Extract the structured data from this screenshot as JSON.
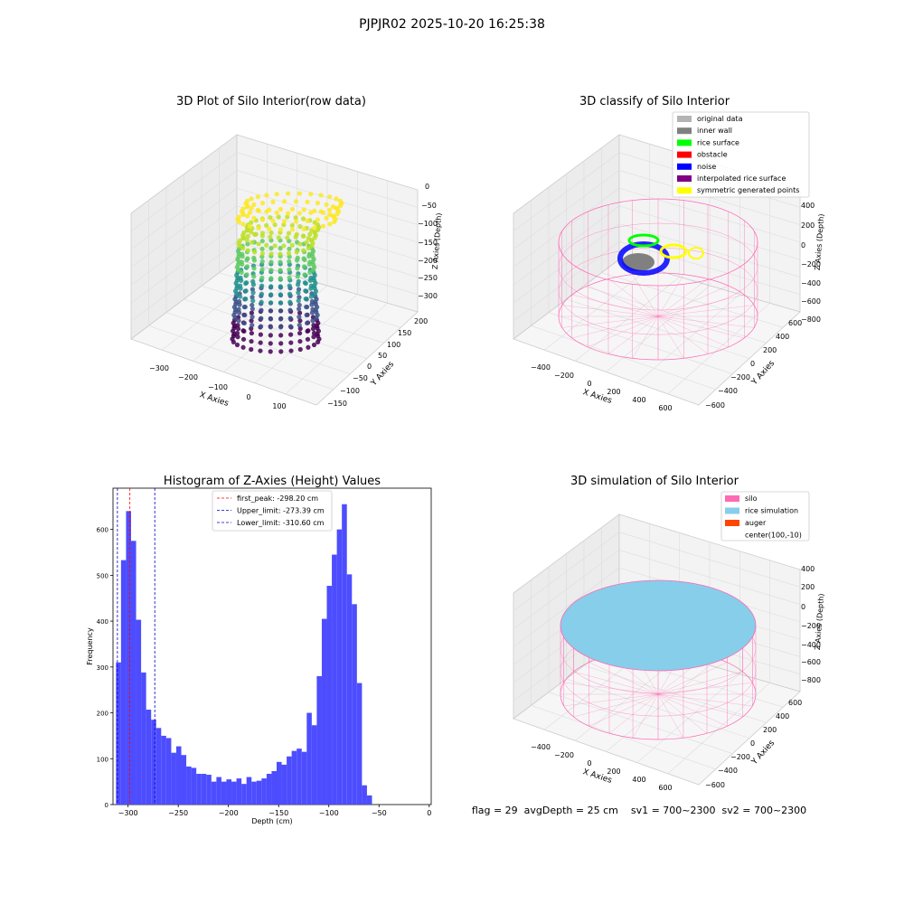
{
  "figure": {
    "suptitle": "PJPJR02 2025-10-20 16:25:38",
    "footer": "flag = 29  avgDepth = 25 cm    sv1 = 700~2300  sv2 = 700~2300"
  },
  "colors": {
    "histogram_bar": "#4d4dff",
    "first_peak": "#ff0000",
    "limits": "#0000cc",
    "silo_wire": "#ff69b4",
    "rice_fill": "#87ceeb",
    "auger": "#ff4500",
    "original_data": "#b4b4b4",
    "inner_wall": "#808080",
    "rice_surface": "#00ff00",
    "obstacle": "#ff0000",
    "noise": "#0000ff",
    "interpolated": "#800080",
    "symmetric": "#ffff00"
  },
  "panels": {
    "raw": {
      "title": "3D Plot of Silo Interior(row data)",
      "xlabel": "X Axies",
      "ylabel": "Y Axies",
      "zlabel": "Z Axies (Depth)",
      "xticks": [
        "−300",
        "−200",
        "−100",
        "0",
        "100"
      ],
      "yticks": [
        "200",
        "150",
        "100",
        "50",
        "0",
        "−50",
        "−100",
        "−150"
      ],
      "zticks": [
        "0",
        "−50",
        "−100",
        "−150",
        "−200",
        "−250",
        "−300"
      ]
    },
    "classify": {
      "title": "3D classify of Silo Interior",
      "xlabel": "X Axies",
      "ylabel": "Y Axies",
      "zlabel": "Z Axies (Depth)",
      "xticks": [
        "−400",
        "−200",
        "0",
        "200",
        "400",
        "600"
      ],
      "yticks": [
        "600",
        "400",
        "200",
        "0",
        "−200",
        "−400",
        "−600"
      ],
      "zticks": [
        "400",
        "200",
        "0",
        "−200",
        "−400",
        "−600",
        "−800"
      ],
      "legend": [
        {
          "label": "original data",
          "color": "#b4b4b4"
        },
        {
          "label": "inner wall",
          "color": "#808080"
        },
        {
          "label": "rice surface",
          "color": "#00ff00"
        },
        {
          "label": "obstacle",
          "color": "#ff0000"
        },
        {
          "label": "noise",
          "color": "#0000ff"
        },
        {
          "label": "interpolated rice surface",
          "color": "#800080"
        },
        {
          "label": "symmetric generated points",
          "color": "#ffff00"
        }
      ]
    },
    "simulation": {
      "title": "3D simulation of Silo Interior",
      "xlabel": "X Axies",
      "ylabel": "Y Axies",
      "zlabel": "Z Axies (Depth)",
      "xticks": [
        "−400",
        "−200",
        "0",
        "200",
        "400",
        "600"
      ],
      "yticks": [
        "600",
        "400",
        "200",
        "0",
        "−200",
        "−400",
        "−600"
      ],
      "zticks": [
        "400",
        "200",
        "0",
        "−200",
        "−400",
        "−600",
        "−800"
      ],
      "legend": [
        {
          "label": "silo",
          "color": "#ff69b4"
        },
        {
          "label": "rice simulation",
          "color": "#87ceeb"
        },
        {
          "label": "auger",
          "color": "#ff4500"
        },
        {
          "label": "center(100,-10)",
          "color": ""
        }
      ]
    }
  },
  "chart_data": [
    {
      "type": "bar",
      "title": "Histogram of Z-Axies (Height) Values",
      "xlabel": "Depth (cm)",
      "ylabel": "Frequency",
      "xlim": [
        -315,
        2
      ],
      "ylim": [
        0,
        690
      ],
      "bin_width": 5,
      "bin_start": -312,
      "xticks": [
        -300,
        -250,
        -200,
        -150,
        -100,
        -50,
        0
      ],
      "xtick_labels": [
        "−300",
        "−250",
        "−200",
        "−150",
        "−100",
        "−50",
        "0"
      ],
      "yticks": [
        0,
        100,
        200,
        300,
        400,
        500,
        600
      ],
      "values": [
        310,
        533,
        640,
        575,
        403,
        288,
        207,
        185,
        167,
        150,
        145,
        113,
        127,
        108,
        83,
        80,
        67,
        67,
        65,
        50,
        60,
        50,
        55,
        50,
        57,
        45,
        60,
        50,
        52,
        57,
        67,
        73,
        93,
        87,
        105,
        117,
        122,
        115,
        200,
        173,
        280,
        405,
        477,
        545,
        600,
        655,
        502,
        437,
        265,
        42,
        20
      ],
      "lines": [
        {
          "name": "first_peak: -298.20 cm",
          "x": -298.2,
          "color": "#ff0000"
        },
        {
          "name": "Upper_limit: -273.39 cm",
          "x": -273.39,
          "color": "#0000cc"
        },
        {
          "name": "Lower_limit: -310.60 cm",
          "x": -310.6,
          "color": "#0000cc"
        }
      ],
      "legend_position": "top-center"
    }
  ]
}
